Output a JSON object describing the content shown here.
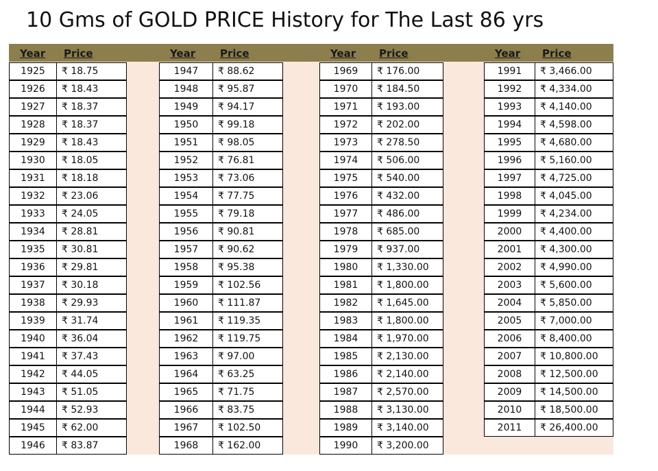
{
  "title": "10 Gms of GOLD PRICE History for The Last 86 yrs",
  "tables": [
    {
      "headers": [
        "Year",
        "Price"
      ],
      "rows": [
        [
          "1925",
          "₹ 18.75"
        ],
        [
          "1926",
          "₹ 18.43"
        ],
        [
          "1927",
          "₹ 18.37"
        ],
        [
          "1928",
          "₹ 18.37"
        ],
        [
          "1929",
          "₹ 18.43"
        ],
        [
          "1930",
          "₹ 18.05"
        ],
        [
          "1931",
          "₹ 18.18"
        ],
        [
          "1932",
          "₹ 23.06"
        ],
        [
          "1933",
          "₹ 24.05"
        ],
        [
          "1934",
          "₹ 28.81"
        ],
        [
          "1935",
          "₹ 30.81"
        ],
        [
          "1936",
          "₹ 29.81"
        ],
        [
          "1937",
          "₹ 30.18"
        ],
        [
          "1938",
          "₹ 29.93"
        ],
        [
          "1939",
          "₹ 31.74"
        ],
        [
          "1940",
          "₹ 36.04"
        ],
        [
          "1941",
          "₹ 37.43"
        ],
        [
          "1942",
          "₹ 44.05"
        ],
        [
          "1943",
          "₹ 51.05"
        ],
        [
          "1944",
          "₹ 52.93"
        ],
        [
          "1945",
          "₹ 62.00"
        ],
        [
          "1946",
          "₹ 83.87"
        ]
      ]
    },
    {
      "headers": [
        "Year",
        "Price"
      ],
      "rows": [
        [
          "1947",
          "₹ 88.62"
        ],
        [
          "1948",
          "₹ 95.87"
        ],
        [
          "1949",
          "₹ 94.17"
        ],
        [
          "1950",
          "₹ 99.18"
        ],
        [
          "1951",
          "₹ 98.05"
        ],
        [
          "1952",
          "₹ 76.81"
        ],
        [
          "1953",
          "₹ 73.06"
        ],
        [
          "1954",
          "₹ 77.75"
        ],
        [
          "1955",
          "₹ 79.18"
        ],
        [
          "1956",
          "₹ 90.81"
        ],
        [
          "1957",
          "₹ 90.62"
        ],
        [
          "1958",
          "₹ 95.38"
        ],
        [
          "1959",
          "₹ 102.56"
        ],
        [
          "1960",
          "₹ 111.87"
        ],
        [
          "1961",
          "₹ 119.35"
        ],
        [
          "1962",
          "₹ 119.75"
        ],
        [
          "1963",
          "₹ 97.00"
        ],
        [
          "1964",
          "₹ 63.25"
        ],
        [
          "1965",
          "₹ 71.75"
        ],
        [
          "1966",
          "₹ 83.75"
        ],
        [
          "1967",
          "₹ 102.50"
        ],
        [
          "1968",
          "₹ 162.00"
        ]
      ]
    },
    {
      "headers": [
        "Year",
        "Price"
      ],
      "rows": [
        [
          "1969",
          "₹ 176.00"
        ],
        [
          "1970",
          "₹ 184.50"
        ],
        [
          "1971",
          "₹ 193.00"
        ],
        [
          "1972",
          "₹ 202.00"
        ],
        [
          "1973",
          "₹ 278.50"
        ],
        [
          "1974",
          "₹ 506.00"
        ],
        [
          "1975",
          "₹ 540.00"
        ],
        [
          "1976",
          "₹ 432.00"
        ],
        [
          "1977",
          "₹ 486.00"
        ],
        [
          "1978",
          "₹ 685.00"
        ],
        [
          "1979",
          "₹ 937.00"
        ],
        [
          "1980",
          "₹ 1,330.00"
        ],
        [
          "1981",
          "₹ 1,800.00"
        ],
        [
          "1982",
          "₹ 1,645.00"
        ],
        [
          "1983",
          "₹ 1,800.00"
        ],
        [
          "1984",
          "₹ 1,970.00"
        ],
        [
          "1985",
          "₹ 2,130.00"
        ],
        [
          "1986",
          "₹ 2,140.00"
        ],
        [
          "1987",
          "₹ 2,570.00"
        ],
        [
          "1988",
          "₹ 3,130.00"
        ],
        [
          "1989",
          "₹ 3,140.00"
        ],
        [
          "1990",
          "₹ 3,200.00"
        ]
      ]
    },
    {
      "headers": [
        "Year",
        "Price"
      ],
      "rows": [
        [
          "1991",
          "₹ 3,466.00"
        ],
        [
          "1992",
          "₹ 4,334.00"
        ],
        [
          "1993",
          "₹ 4,140.00"
        ],
        [
          "1994",
          "₹ 4,598.00"
        ],
        [
          "1995",
          "₹ 4,680.00"
        ],
        [
          "1996",
          "₹ 5,160.00"
        ],
        [
          "1997",
          "₹ 4,725.00"
        ],
        [
          "1998",
          "₹ 4,045.00"
        ],
        [
          "1999",
          "₹ 4,234.00"
        ],
        [
          "2000",
          "₹ 4,400.00"
        ],
        [
          "2001",
          "₹ 4,300.00"
        ],
        [
          "2002",
          "₹ 4,990.00"
        ],
        [
          "2003",
          "₹ 5,600.00"
        ],
        [
          "2004",
          "₹ 5,850.00"
        ],
        [
          "2005",
          "₹ 7,000.00"
        ],
        [
          "2006",
          "₹ 8,400.00"
        ],
        [
          "2007",
          "₹ 10,800.00"
        ],
        [
          "2008",
          "₹ 12,500.00"
        ],
        [
          "2009",
          "₹ 14,500.00"
        ],
        [
          "2010",
          "₹ 18,500.00"
        ],
        [
          "2011",
          "₹ 26,400.00"
        ]
      ]
    }
  ]
}
